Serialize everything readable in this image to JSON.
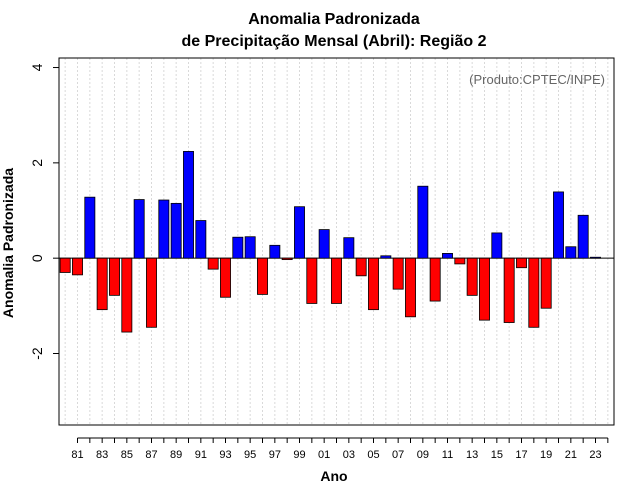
{
  "chart_data": {
    "type": "bar",
    "title": [
      "Anomalia Padronizada",
      "de Precipitação Mensal (Abril): Região 2"
    ],
    "xlabel": "Ano",
    "ylabel": "Anomalia Padronizada",
    "annotation": "(Produto:CPTEC/INPE)",
    "ylim": [
      -3.5,
      4.2
    ],
    "yticks": [
      -2,
      0,
      2,
      4
    ],
    "ytick_labels": [
      "-2",
      "0",
      "2",
      "4"
    ],
    "xtick_labels": [
      "81",
      "83",
      "85",
      "87",
      "89",
      "91",
      "93",
      "95",
      "97",
      "99",
      "01",
      "03",
      "05",
      "07",
      "09",
      "11",
      "13",
      "15",
      "17",
      "19",
      "21",
      "23"
    ],
    "categories": [
      "1980",
      "1981",
      "1982",
      "1983",
      "1984",
      "1985",
      "1986",
      "1987",
      "1988",
      "1989",
      "1990",
      "1991",
      "1992",
      "1993",
      "1994",
      "1995",
      "1996",
      "1997",
      "1998",
      "1999",
      "2000",
      "2001",
      "2002",
      "2003",
      "2004",
      "2005",
      "2006",
      "2007",
      "2008",
      "2009",
      "2010",
      "2011",
      "2012",
      "2013",
      "2014",
      "2015",
      "2016",
      "2017",
      "2018",
      "2019",
      "2020",
      "2021",
      "2022",
      "2023",
      "2024"
    ],
    "values": [
      -0.3,
      -0.35,
      1.28,
      -1.08,
      -0.78,
      -1.55,
      1.23,
      -1.45,
      1.22,
      1.15,
      2.24,
      0.79,
      -0.23,
      -0.82,
      0.44,
      0.45,
      -0.76,
      0.27,
      -0.03,
      1.08,
      -0.95,
      0.6,
      -0.95,
      0.43,
      -0.37,
      -1.08,
      0.05,
      -0.65,
      -1.23,
      1.51,
      -0.9,
      0.1,
      -0.12,
      -0.78,
      -1.3,
      0.53,
      -1.35,
      -0.2,
      -1.45,
      -1.05,
      1.39,
      0.24,
      0.9,
      0.02,
      null
    ],
    "grid": "vertical dotted",
    "colors": {
      "positive": "#0000ff",
      "negative": "#ff0000",
      "grid": "#d9d9d9",
      "annotation": "#666666"
    }
  }
}
